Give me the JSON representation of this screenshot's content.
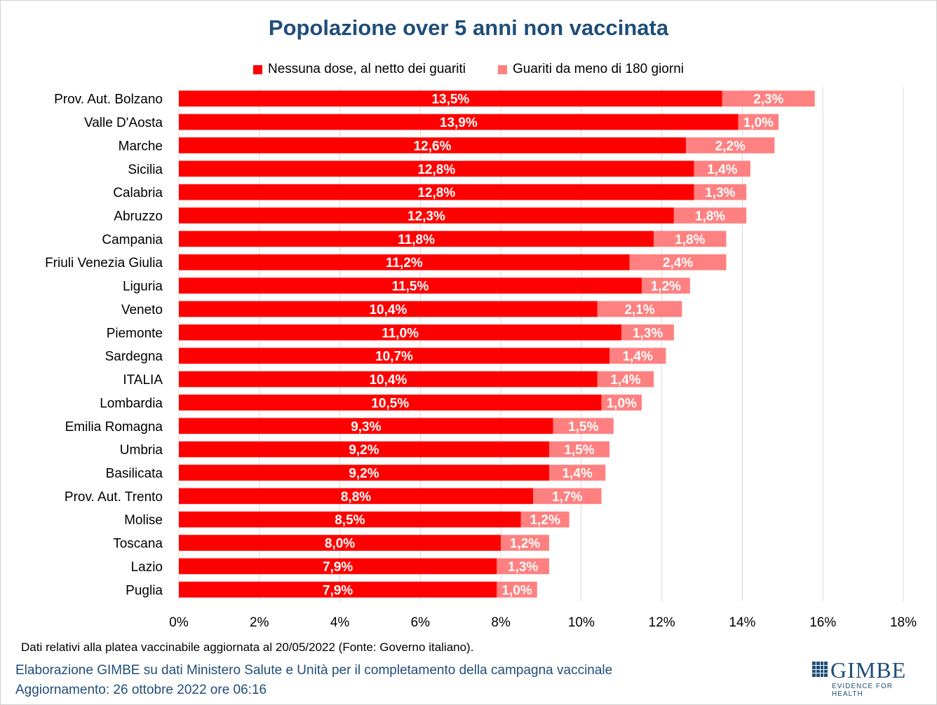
{
  "chart_data": {
    "type": "bar",
    "orientation": "horizontal",
    "stacked": true,
    "title": "Popolazione over 5 anni non vaccinata",
    "categories": [
      "Prov. Aut. Bolzano",
      "Valle D'Aosta",
      "Marche",
      "Sicilia",
      "Calabria",
      "Abruzzo",
      "Campania",
      "Friuli Venezia Giulia",
      "Liguria",
      "Veneto",
      "Piemonte",
      "Sardegna",
      "ITALIA",
      "Lombardia",
      "Emilia Romagna",
      "Umbria",
      "Basilicata",
      "Prov. Aut. Trento",
      "Molise",
      "Toscana",
      "Lazio",
      "Puglia"
    ],
    "series": [
      {
        "name": "Nessuna dose, al netto dei guariti",
        "color": "#ff0000",
        "values": [
          13.5,
          13.9,
          12.6,
          12.8,
          12.8,
          12.3,
          11.8,
          11.2,
          11.5,
          10.4,
          11.0,
          10.7,
          10.4,
          10.5,
          9.3,
          9.2,
          9.2,
          8.8,
          8.5,
          8.0,
          7.9,
          7.9
        ],
        "labels": [
          "13,5%",
          "13,9%",
          "12,6%",
          "12,8%",
          "12,8%",
          "12,3%",
          "11,8%",
          "11,2%",
          "11,5%",
          "10,4%",
          "11,0%",
          "10,7%",
          "10,4%",
          "10,5%",
          "9,3%",
          "9,2%",
          "9,2%",
          "8,8%",
          "8,5%",
          "8,0%",
          "7,9%",
          "7,9%"
        ]
      },
      {
        "name": "Guariti da meno di 180 giorni",
        "color": "#ff8080",
        "values": [
          2.3,
          1.0,
          2.2,
          1.4,
          1.3,
          1.8,
          1.8,
          2.4,
          1.2,
          2.1,
          1.3,
          1.4,
          1.4,
          1.0,
          1.5,
          1.5,
          1.4,
          1.7,
          1.2,
          1.2,
          1.3,
          1.0
        ],
        "labels": [
          "2,3%",
          "1,0%",
          "2,2%",
          "1,4%",
          "1,3%",
          "1,8%",
          "1,8%",
          "2,4%",
          "1,2%",
          "2,1%",
          "1,3%",
          "1,4%",
          "1,4%",
          "1,0%",
          "1,5%",
          "1,5%",
          "1,4%",
          "1,7%",
          "1,2%",
          "1,2%",
          "1,3%",
          "1,0%"
        ]
      }
    ],
    "xlim": [
      0,
      18
    ],
    "xticks": [
      0,
      2,
      4,
      6,
      8,
      10,
      12,
      14,
      16,
      18
    ],
    "xtick_labels": [
      "0%",
      "2%",
      "4%",
      "6%",
      "8%",
      "10%",
      "12%",
      "14%",
      "16%",
      "18%"
    ],
    "grid": true,
    "legend_position": "top"
  },
  "note": "Dati relativi alla platea vaccinabile aggiornata al 20/05/2022 (Fonte: Governo italiano).",
  "footer": {
    "line1": "Elaborazione GIMBE su dati Ministero Salute e Unità per il completamento della campagna vaccinale",
    "line2": "Aggiornamento: 26 ottobre 2022 ore 06:16"
  },
  "logo": {
    "name": "GIMBE",
    "tagline": "EVIDENCE FOR HEALTH"
  }
}
